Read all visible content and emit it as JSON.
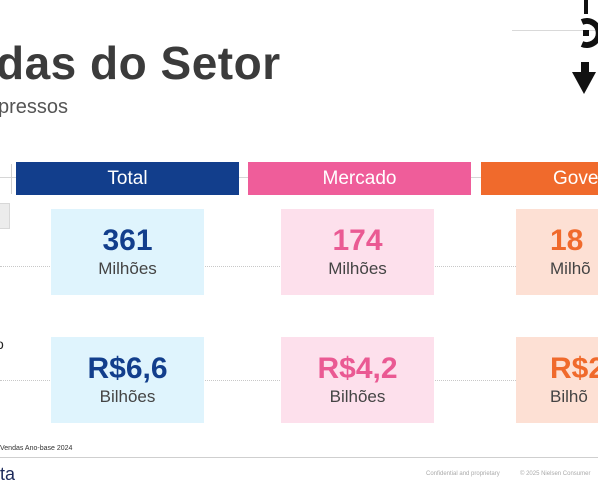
{
  "slide": {
    "title": "das do Setor",
    "subtitle": "pressos"
  },
  "columns": [
    {
      "label": "Total",
      "color": "#123e8c"
    },
    {
      "label": "Mercado",
      "color": "#ef5d9a"
    },
    {
      "label": "Gove",
      "color": "#f06a2c"
    }
  ],
  "rows": [
    {
      "side_label": "",
      "cells": [
        {
          "value": "361",
          "unit": "Milhões"
        },
        {
          "value": "174",
          "unit": "Milhões"
        },
        {
          "value": "18",
          "unit": "Milhõ"
        }
      ]
    },
    {
      "side_label": "o",
      "cells": [
        {
          "value": "R$6,6",
          "unit": "Bilhões"
        },
        {
          "value": "R$4,2",
          "unit": "Bilhões"
        },
        {
          "value": "R$2",
          "unit": "Bilhõ"
        }
      ]
    }
  ],
  "footer": {
    "note": "Vendas  Ano-base 2024",
    "brand": "ta",
    "confidential": "Confidential and proprietary",
    "copyright": "© 2025 Nielsen Consumer"
  }
}
